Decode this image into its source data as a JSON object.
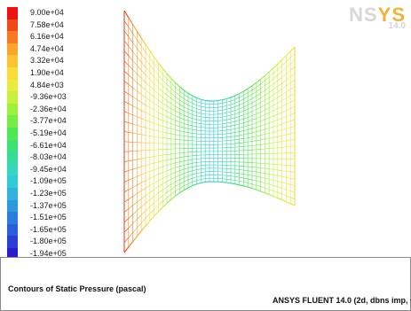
{
  "legend": {
    "labels": [
      "9.00e+04",
      "7.58e+04",
      "6.16e+04",
      "4.74e+04",
      "3.32e+04",
      "1.90e+04",
      "4.84e+03",
      "-9.36e+03",
      "-2.36e+04",
      "-3.77e+04",
      "-5.19e+04",
      "-6.61e+04",
      "-8.03e+04",
      "-9.45e+04",
      "-1.09e+05",
      "-1.23e+05",
      "-1.37e+05",
      "-1.51e+05",
      "-1.65e+05",
      "-1.80e+05",
      "-1.94e+05"
    ],
    "colors": [
      "#ee1111",
      "#f14a1a",
      "#f57a22",
      "#f9a52b",
      "#fbc232",
      "#f7dc3a",
      "#e8ec3c",
      "#c8f03a",
      "#9df03e",
      "#74ed46",
      "#4ee852",
      "#3be274",
      "#37dc9a",
      "#34d6be",
      "#31cbd8",
      "#2fb3dd",
      "#2c98dd",
      "#2a7cdd",
      "#2a5edb",
      "#2b3fd6",
      "#2b1ccf"
    ]
  },
  "logo": {
    "brand_a": "ANS",
    "brand_b": "YS",
    "version": "14.0"
  },
  "footer": {
    "title": "Contours of Static Pressure (pascal)",
    "solver": "ANSYS FLUENT 14.0 (2d, dbns imp, ske)"
  }
}
